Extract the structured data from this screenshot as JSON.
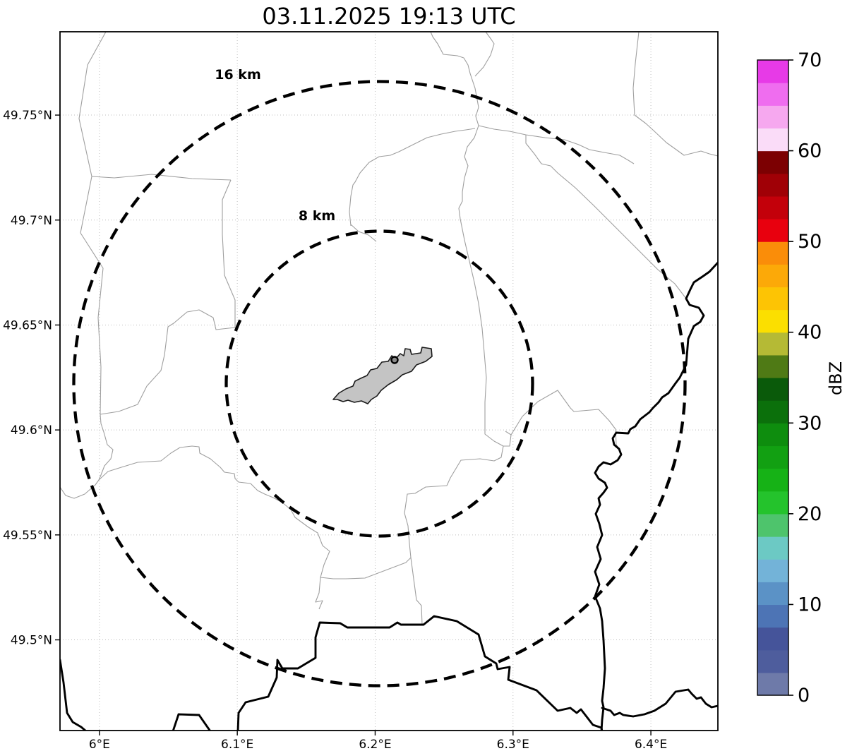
{
  "title": "03.11.2025 19:13 UTC",
  "map": {
    "x_axis_ticks": [
      {
        "label": "6°E",
        "lon": 6.0
      },
      {
        "label": "6.1°E",
        "lon": 6.1
      },
      {
        "label": "6.2°E",
        "lon": 6.2
      },
      {
        "label": "6.3°E",
        "lon": 6.3
      },
      {
        "label": "6.4°E",
        "lon": 6.4
      }
    ],
    "y_axis_ticks": [
      {
        "label": "49.75°N",
        "lat": 49.75
      },
      {
        "label": "49.7°N",
        "lat": 49.7
      },
      {
        "label": "49.65°N",
        "lat": 49.65
      },
      {
        "label": "49.6°N",
        "lat": 49.6
      },
      {
        "label": "49.55°N",
        "lat": 49.55
      },
      {
        "label": "49.5°N",
        "lat": 49.5
      }
    ],
    "range_rings": [
      {
        "label": "16 km",
        "radius_km": 16
      },
      {
        "label": "8 km",
        "radius_km": 8
      }
    ]
  },
  "colorbar": {
    "unit_label": "dBZ",
    "min": 0,
    "max": 70,
    "segment_step_dbz": 2.5,
    "ticks": [
      {
        "label": "0",
        "value": 0
      },
      {
        "label": "10",
        "value": 10
      },
      {
        "label": "20",
        "value": 20
      },
      {
        "label": "30",
        "value": 30
      },
      {
        "label": "40",
        "value": 40
      },
      {
        "label": "50",
        "value": 50
      },
      {
        "label": "60",
        "value": 60
      },
      {
        "label": "70",
        "value": 70
      }
    ],
    "segment_colors_bottom_to_top": [
      "#6e7aa9",
      "#4e5d9d",
      "#45549a",
      "#4d74b5",
      "#5b92c6",
      "#73b3d8",
      "#6cc9c4",
      "#4ec46c",
      "#24c32c",
      "#16b216",
      "#12a012",
      "#0e8d0e",
      "#0b700b",
      "#0a5a0a",
      "#4f7a15",
      "#b5ba35",
      "#fbdf00",
      "#fdc404",
      "#fca908",
      "#fa8d09",
      "#e8000e",
      "#c3000a",
      "#a00006",
      "#7c0002",
      "#fadcf8",
      "#f6a8ef",
      "#ef6def",
      "#e73ae7"
    ]
  },
  "colors": {
    "background": "#ffffff",
    "range_ring": "#000000",
    "country_border": "#000000",
    "admin_line": "#9f9f9f",
    "gridline": "#bdbdbd",
    "airport_fill": "#c4c4c4",
    "airport_outline": "#1a1a1a"
  }
}
